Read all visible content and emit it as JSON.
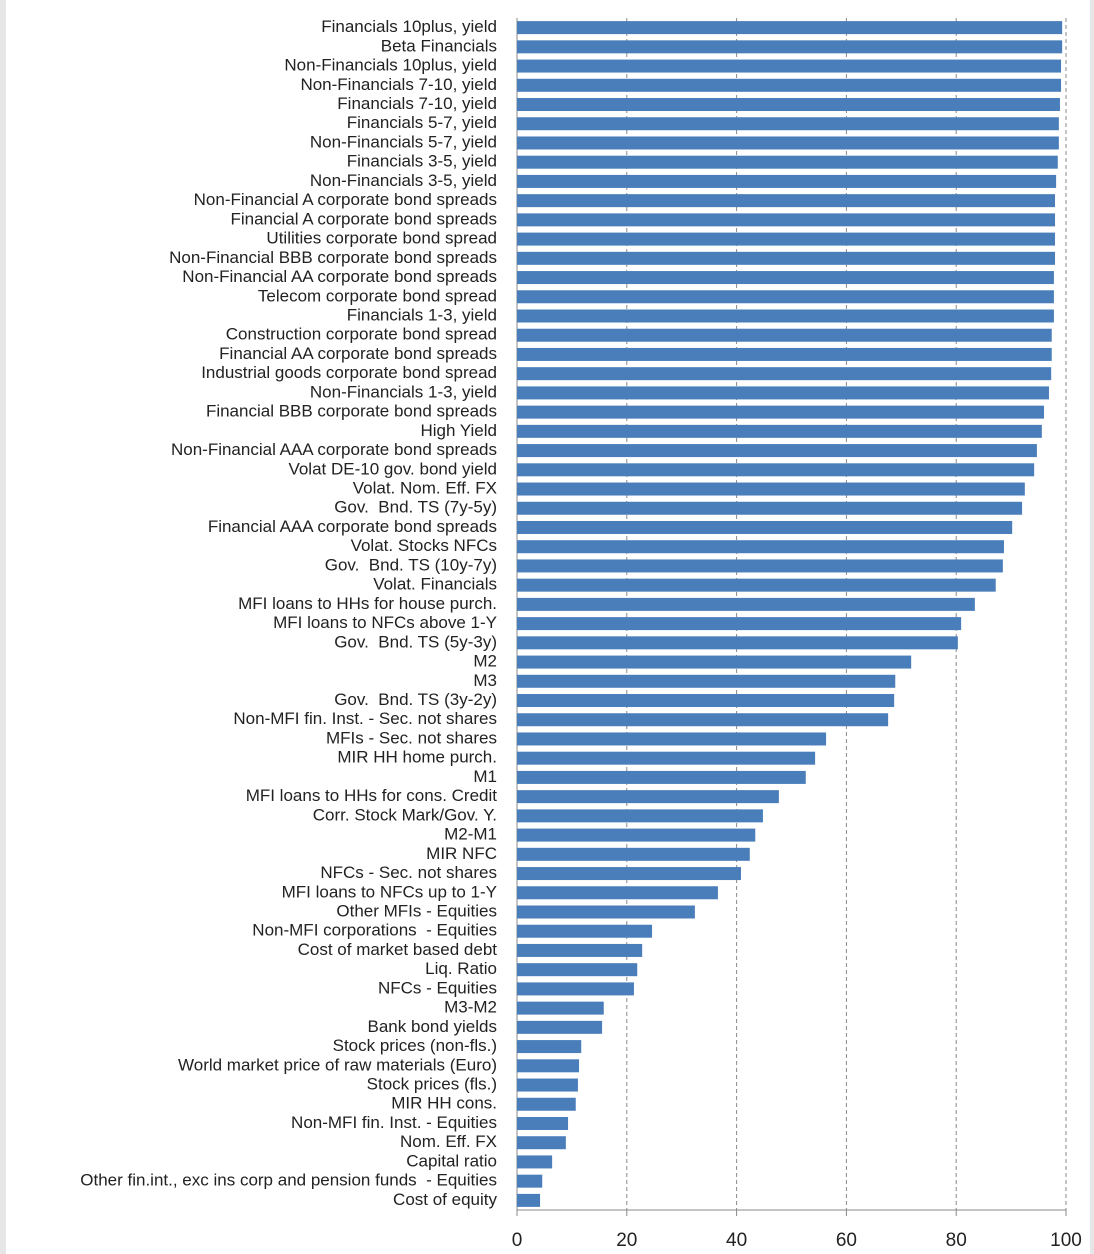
{
  "chart_data": {
    "type": "bar",
    "orientation": "horizontal",
    "color": "#4a7ebb",
    "categories": [
      "Financials 10plus, yield",
      "Beta Financials",
      "Non-Financials 10plus, yield",
      "Non-Financials 7-10, yield",
      "Financials 7-10, yield",
      "Financials 5-7, yield",
      "Non-Financials 5-7, yield",
      "Financials 3-5, yield",
      "Non-Financials 3-5, yield",
      "Non-Financial A corporate bond spreads",
      "Financial A corporate bond spreads",
      "Utilities corporate bond spread",
      "Non-Financial BBB corporate bond spreads",
      "Non-Financial AA corporate bond spreads",
      "Telecom corporate bond spread",
      "Financials 1-3, yield",
      "Construction corporate bond spread",
      "Financial AA corporate bond spreads",
      "Industrial goods corporate bond spread",
      "Non-Financials 1-3, yield",
      "Financial BBB corporate bond spreads",
      "High Yield",
      "Non-Financial AAA corporate bond spreads",
      "Volat DE-10 gov. bond yield",
      "Volat. Nom. Eff. FX",
      "Gov.  Bnd. TS (7y-5y)",
      "Financial AAA corporate bond spreads",
      "Volat. Stocks NFCs",
      "Gov.  Bnd. TS (10y-7y)",
      "Volat. Financials",
      "MFI loans to HHs for house purch.",
      "MFI loans to NFCs above 1-Y",
      "Gov.  Bnd. TS (5y-3y)",
      "M2",
      "M3",
      "Gov.  Bnd. TS (3y-2y)",
      "Non-MFI fin. Inst. - Sec. not shares",
      "MFIs - Sec. not shares",
      "MIR HH home purch.",
      "M1",
      "MFI loans to HHs for cons. Credit",
      "Corr. Stock Mark/Gov. Y.",
      "M2-M1",
      "MIR NFC",
      "NFCs - Sec. not shares",
      "MFI loans to NFCs up to 1-Y",
      "Other MFIs - Equities",
      "Non-MFI corporations  - Equities",
      "Cost of market based debt",
      "Liq. Ratio",
      "NFCs - Equities",
      "M3-M2",
      "Bank bond yields",
      "Stock prices (non-fls.)",
      "World market price of raw materials (Euro)",
      "Stock prices (fls.)",
      "MIR HH cons.",
      "Non-MFI fin. Inst. - Equities",
      "Nom. Eff. FX",
      "Capital ratio",
      "Other fin.int., exc ins corp and pension funds  - Equities",
      "Cost of equity"
    ],
    "values": [
      99.3,
      99.3,
      99.1,
      99.1,
      98.9,
      98.7,
      98.7,
      98.5,
      98.2,
      98.0,
      98.0,
      98.0,
      98.0,
      97.8,
      97.8,
      97.8,
      97.4,
      97.4,
      97.3,
      96.9,
      96.0,
      95.6,
      94.7,
      94.2,
      92.5,
      92.0,
      90.2,
      88.7,
      88.5,
      87.2,
      83.4,
      80.9,
      80.3,
      71.8,
      68.9,
      68.7,
      67.6,
      56.3,
      54.3,
      52.6,
      47.7,
      44.8,
      43.4,
      42.4,
      40.8,
      36.6,
      32.4,
      24.6,
      22.8,
      21.9,
      21.3,
      15.8,
      15.5,
      11.7,
      11.3,
      11.1,
      10.7,
      9.3,
      8.9,
      6.4,
      4.6,
      4.2
    ],
    "xlim": [
      0,
      100
    ],
    "xticks": [
      0,
      20,
      40,
      60,
      80,
      100
    ],
    "grid": true
  }
}
